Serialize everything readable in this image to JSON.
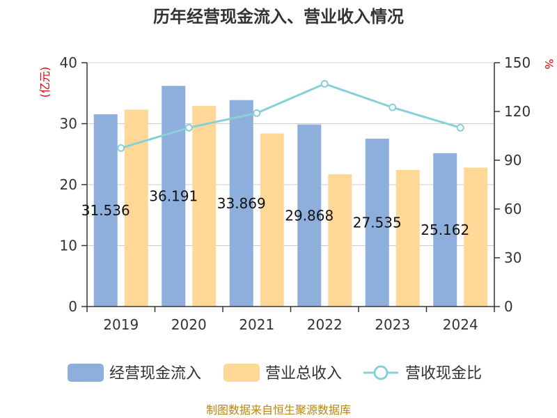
{
  "chart_data": {
    "type": "bar",
    "title": "历年经营现金流入、营业收入情况",
    "categories": [
      "2019",
      "2020",
      "2021",
      "2022",
      "2023",
      "2024"
    ],
    "series": [
      {
        "name": "经营现金流入",
        "type": "bar",
        "axis": "left",
        "color": "#8eaedc",
        "values": [
          31.536,
          36.191,
          33.869,
          29.868,
          27.535,
          25.162
        ],
        "labels": [
          "31.536",
          "36.191",
          "33.869",
          "29.868",
          "27.535",
          "25.162"
        ]
      },
      {
        "name": "营业总收入",
        "type": "bar",
        "axis": "left",
        "color": "#ffd897",
        "values": [
          32.3,
          32.9,
          28.4,
          21.7,
          22.4,
          22.8
        ]
      },
      {
        "name": "营收现金比",
        "type": "line",
        "axis": "right",
        "color": "#86d0d8",
        "values": [
          97.5,
          110,
          119,
          137,
          122.5,
          110
        ]
      }
    ],
    "y_left": {
      "unit": "(亿元)",
      "ylim": [
        0,
        40
      ],
      "ticks": [
        "0",
        "10",
        "20",
        "30",
        "40"
      ]
    },
    "y_right": {
      "unit": "%",
      "ylim": [
        0,
        150
      ],
      "ticks": [
        "0",
        "30",
        "60",
        "90",
        "120",
        "150"
      ]
    },
    "grid": true,
    "legend_position": "bottom"
  },
  "source": "制图数据来自恒生聚源数据库"
}
